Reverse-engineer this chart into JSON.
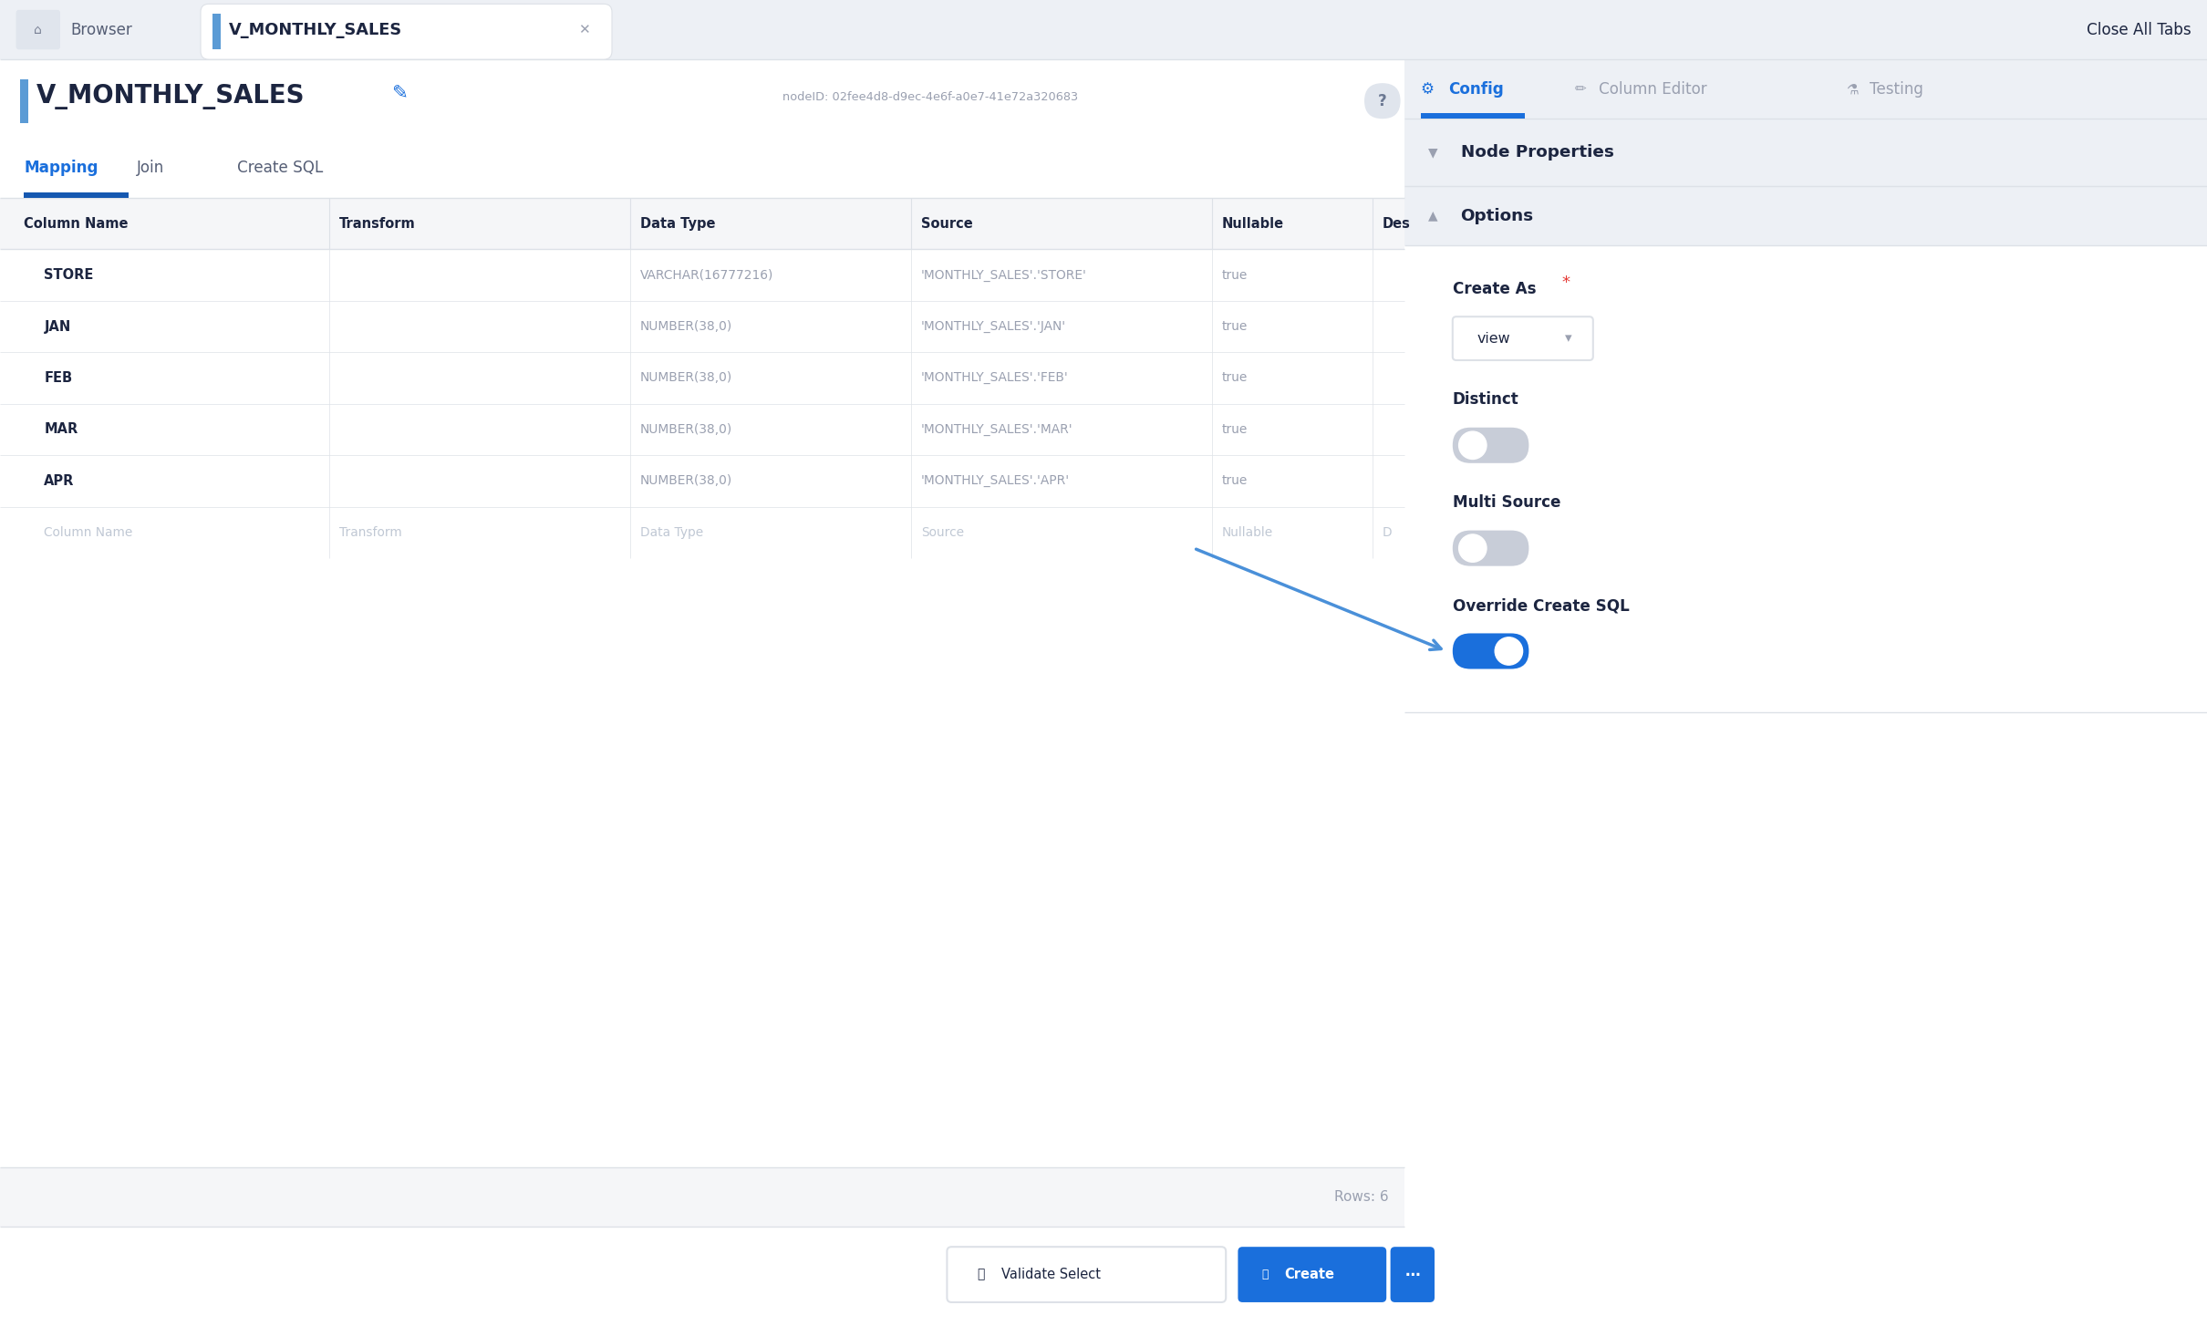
{
  "title": "V_MONTHLY_SALES",
  "node_id": "nodeID: 02fee4d8-d9ec-4e6f-a0e7-41e72a320683",
  "browser_tab": "V_MONTHLY_SALES",
  "top_right_btn": "Close All Tabs",
  "tabs": [
    "Mapping",
    "Join",
    "Create SQL"
  ],
  "right_tabs_labels": [
    "Config",
    "Column Editor",
    "Testing"
  ],
  "node_properties_label": "Node Properties",
  "options_label": "Options",
  "create_as_label": "Create As",
  "create_as_value": "view",
  "distinct_label": "Distinct",
  "multi_source_label": "Multi Source",
  "override_label": "Override Create SQL",
  "rows_label": "Rows: 6",
  "table_headers": [
    "Column Name",
    "Transform",
    "Data Type",
    "Source",
    "Nullable",
    "Des"
  ],
  "table_rows": [
    {
      "col": "STORE",
      "dtype": "VARCHAR(16777216)",
      "source": "'MONTHLY_SALES'.'STORE'",
      "nullable": "true"
    },
    {
      "col": "JAN",
      "dtype": "NUMBER(38,0)",
      "source": "'MONTHLY_SALES'.'JAN'",
      "nullable": "true"
    },
    {
      "col": "FEB",
      "dtype": "NUMBER(38,0)",
      "source": "'MONTHLY_SALES'.'FEB'",
      "nullable": "true"
    },
    {
      "col": "MAR",
      "dtype": "NUMBER(38,0)",
      "source": "'MONTHLY_SALES'.'MAR'",
      "nullable": "true"
    },
    {
      "col": "APR",
      "dtype": "NUMBER(38,0)",
      "source": "'MONTHLY_SALES'.'APR'",
      "nullable": "true"
    }
  ],
  "placeholder_row": {
    "col": "Column Name",
    "transform": "Transform",
    "dtype": "Data Type",
    "source": "Source",
    "nullable": "Nullable",
    "des": "D"
  },
  "bg_color": "#edf0f5",
  "white": "#ffffff",
  "header_bg": "#f5f6f8",
  "border_color": "#dde1e7",
  "text_dark": "#1c2540",
  "text_mid": "#555e75",
  "text_gray": "#9aa0b0",
  "text_light": "#c0c8d4",
  "blue": "#1a6fdc",
  "blue_dark": "#1558b0",
  "toggle_on": "#1a6fdc",
  "toggle_off": "#c8cdd8",
  "right_panel_bg": "#f5f6f8",
  "section_bg": "#edf0f5",
  "tab_divider": "#e2e5eb"
}
